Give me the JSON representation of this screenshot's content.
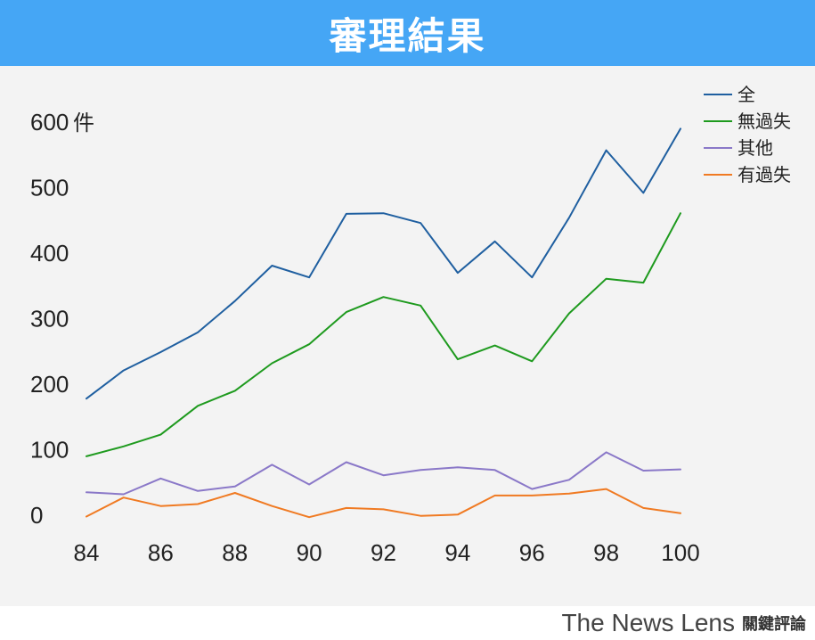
{
  "header": {
    "title": "審理結果"
  },
  "footer": {
    "brand_en": "The News Lens",
    "brand_zh": "關鍵評論"
  },
  "chart_data": {
    "type": "line",
    "title": "審理結果",
    "y_unit": "件",
    "ylim": [
      0,
      600
    ],
    "y_ticks": [
      0,
      100,
      200,
      300,
      400,
      500,
      600
    ],
    "x_ticks": [
      84,
      86,
      88,
      90,
      92,
      94,
      96,
      98,
      100
    ],
    "xlim": [
      84,
      100
    ],
    "grid": false,
    "legend_position": "top-right",
    "x": [
      84,
      85,
      86,
      87,
      88,
      89,
      90,
      91,
      92,
      93,
      94,
      95,
      96,
      97,
      98,
      99,
      100
    ],
    "series": [
      {
        "name": "全",
        "color": "#1f5fa0",
        "values": [
          178,
          221,
          249,
          279,
          327,
          381,
          363,
          460,
          461,
          446,
          370,
          418,
          363,
          454,
          557,
          492,
          590
        ]
      },
      {
        "name": "無過失",
        "color": "#1e9a1e",
        "values": [
          90,
          105,
          123,
          167,
          190,
          232,
          261,
          310,
          333,
          320,
          238,
          259,
          235,
          308,
          361,
          355,
          461
        ]
      },
      {
        "name": "其他",
        "color": "#8a78c8",
        "values": [
          35,
          32,
          56,
          37,
          44,
          77,
          47,
          81,
          61,
          69,
          73,
          69,
          40,
          54,
          96,
          68,
          70
        ]
      },
      {
        "name": "有過失",
        "color": "#f07a22",
        "values": [
          -2,
          27,
          14,
          17,
          34,
          14,
          -3,
          11,
          9,
          -1,
          1,
          30,
          30,
          33,
          40,
          11,
          3
        ]
      }
    ]
  }
}
